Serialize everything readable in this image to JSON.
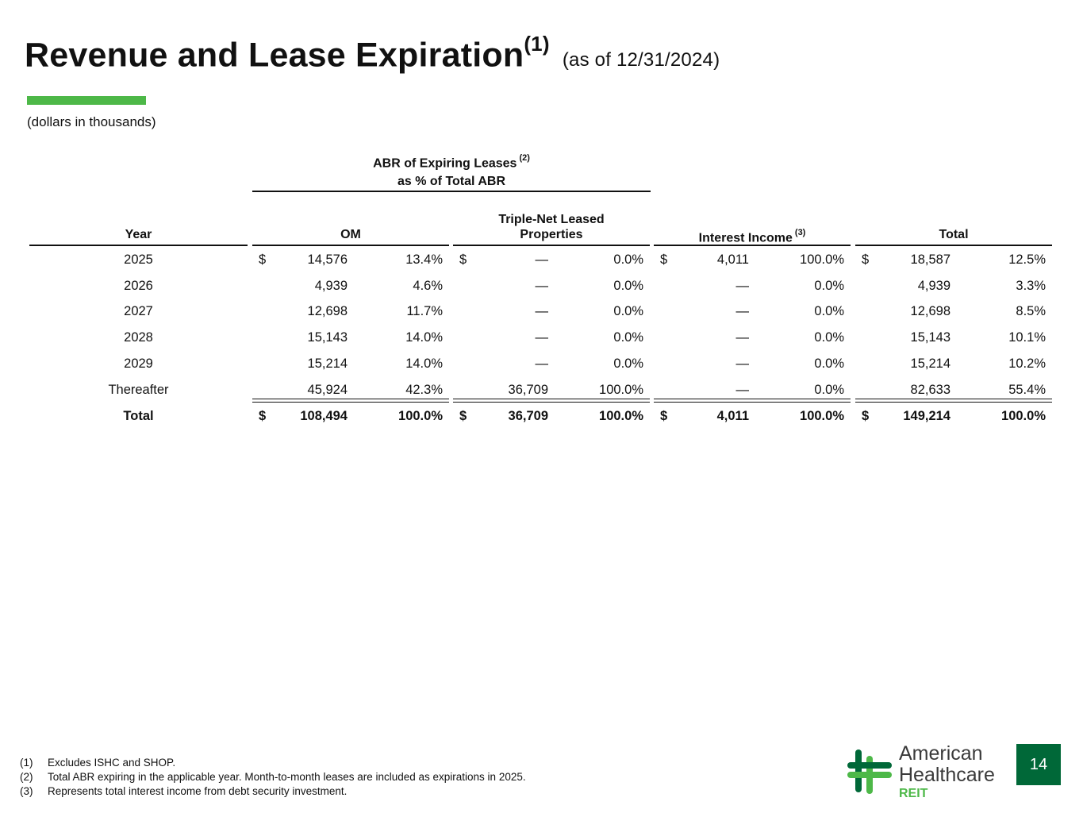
{
  "title": {
    "main": "Revenue and Lease Expiration",
    "sup": "(1)",
    "as_of": "(as of 12/31/2024)"
  },
  "subtitle": "(dollars in thousands)",
  "colors": {
    "accent": "#4db848",
    "brand_dark": "#006838",
    "brand_light": "#4db848"
  },
  "header": {
    "group_line1": "ABR of Expiring Leases",
    "group_line1_sup": "(2)",
    "group_line2": "as % of Total ABR",
    "year": "Year",
    "om": "OM",
    "tnlp_line1": "Triple-Net Leased",
    "tnlp_line2": "Properties",
    "interest": "Interest Income",
    "interest_sup": "(3)",
    "total": "Total"
  },
  "rows": [
    {
      "year": "2025",
      "om_cur": "$",
      "om_val": "14,576",
      "om_pct": "13.4%",
      "tn_cur": "$",
      "tn_val": "—",
      "tn_pct": "0.0%",
      "ii_cur": "$",
      "ii_val": "4,011",
      "ii_pct": "100.0%",
      "tot_cur": "$",
      "tot_val": "18,587",
      "tot_pct": "12.5%"
    },
    {
      "year": "2026",
      "om_cur": "",
      "om_val": "4,939",
      "om_pct": "4.6%",
      "tn_cur": "",
      "tn_val": "—",
      "tn_pct": "0.0%",
      "ii_cur": "",
      "ii_val": "—",
      "ii_pct": "0.0%",
      "tot_cur": "",
      "tot_val": "4,939",
      "tot_pct": "3.3%"
    },
    {
      "year": "2027",
      "om_cur": "",
      "om_val": "12,698",
      "om_pct": "11.7%",
      "tn_cur": "",
      "tn_val": "—",
      "tn_pct": "0.0%",
      "ii_cur": "",
      "ii_val": "—",
      "ii_pct": "0.0%",
      "tot_cur": "",
      "tot_val": "12,698",
      "tot_pct": "8.5%"
    },
    {
      "year": "2028",
      "om_cur": "",
      "om_val": "15,143",
      "om_pct": "14.0%",
      "tn_cur": "",
      "tn_val": "—",
      "tn_pct": "0.0%",
      "ii_cur": "",
      "ii_val": "—",
      "ii_pct": "0.0%",
      "tot_cur": "",
      "tot_val": "15,143",
      "tot_pct": "10.1%"
    },
    {
      "year": "2029",
      "om_cur": "",
      "om_val": "15,214",
      "om_pct": "14.0%",
      "tn_cur": "",
      "tn_val": "—",
      "tn_pct": "0.0%",
      "ii_cur": "",
      "ii_val": "—",
      "ii_pct": "0.0%",
      "tot_cur": "",
      "tot_val": "15,214",
      "tot_pct": "10.2%"
    },
    {
      "year": "Thereafter",
      "om_cur": "",
      "om_val": "45,924",
      "om_pct": "42.3%",
      "tn_cur": "",
      "tn_val": "36,709",
      "tn_pct": "100.0%",
      "ii_cur": "",
      "ii_val": "—",
      "ii_pct": "0.0%",
      "tot_cur": "",
      "tot_val": "82,633",
      "tot_pct": "55.4%"
    }
  ],
  "total_row": {
    "year": "Total",
    "om_cur": "$",
    "om_val": "108,494",
    "om_pct": "100.0%",
    "tn_cur": "$",
    "tn_val": "36,709",
    "tn_pct": "100.0%",
    "ii_cur": "$",
    "ii_val": "4,011",
    "ii_pct": "100.0%",
    "tot_cur": "$",
    "tot_val": "149,214",
    "tot_pct": "100.0%"
  },
  "footnotes": [
    {
      "marker": "(1)",
      "text": "Excludes ISHC and SHOP."
    },
    {
      "marker": "(2)",
      "text": "Total ABR expiring in the applicable year. Month-to-month leases are included as expirations in 2025."
    },
    {
      "marker": "(3)",
      "text": "Represents total interest income from debt security investment."
    }
  ],
  "logo": {
    "line1": "American",
    "line2": "Healthcare",
    "line3": "REIT"
  },
  "page_number": "14"
}
